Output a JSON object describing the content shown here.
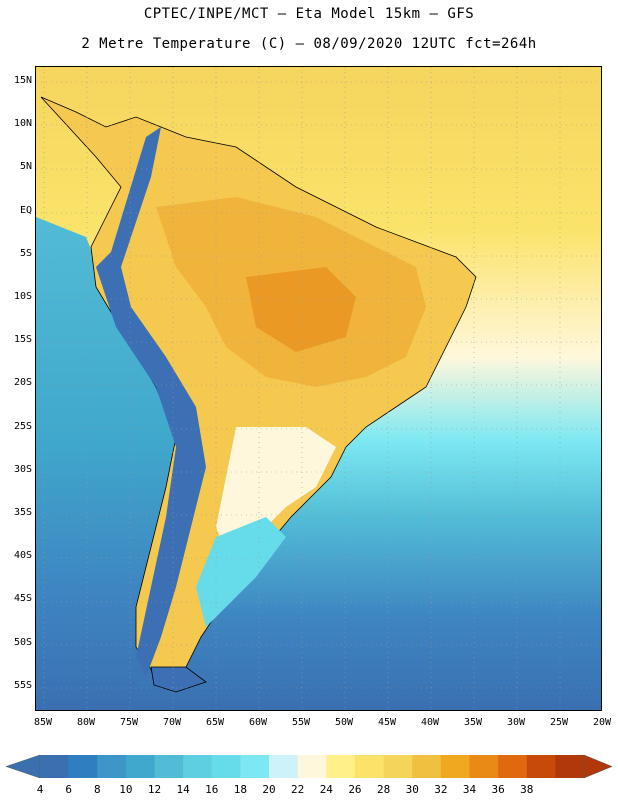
{
  "header": {
    "title_line1": "CPTEC/INPE/MCT –  Eta Model 15km – GFS",
    "title_line2": "2 Metre Temperature (C) – 08/09/2020 12UTC fct=264h"
  },
  "axes": {
    "lat_labels": [
      "15N",
      "10N",
      "5N",
      "EQ",
      "5S",
      "10S",
      "15S",
      "20S",
      "25S",
      "30S",
      "35S",
      "40S",
      "45S",
      "50S",
      "55S"
    ],
    "lon_labels": [
      "85W",
      "80W",
      "75W",
      "70W",
      "65W",
      "60W",
      "55W",
      "50W",
      "45W",
      "40W",
      "35W",
      "30W",
      "25W",
      "20W"
    ]
  },
  "colorbar": {
    "levels": [
      "4",
      "6",
      "8",
      "10",
      "12",
      "14",
      "16",
      "18",
      "20",
      "22",
      "24",
      "26",
      "28",
      "30",
      "32",
      "34",
      "36",
      "38"
    ],
    "colors": [
      "#3a6fb0",
      "#2f7fc0",
      "#3e96c8",
      "#40a8cc",
      "#52bcd6",
      "#5ecfe0",
      "#66dcea",
      "#7de8f2",
      "#cdf2f9",
      "#fff7dc",
      "#fff08a",
      "#fbe36a",
      "#f5d45a",
      "#f0c040",
      "#f0a820",
      "#ea8a16",
      "#e0680e",
      "#c84a0a",
      "#b0380a"
    ],
    "left_arrow_color": "#3a6fb0",
    "right_arrow_color": "#b0380a"
  },
  "map": {
    "ocean_pacific_color": "#3d9ecc",
    "ocean_south_color": "#3a73b4",
    "ocean_atlantic_north_color": "#f5d55e",
    "land_tropical_color": "#f0b43c",
    "land_south_color": "#fbe37a",
    "andes_color": "#3c6fb4",
    "coast_color": "#000000",
    "grid_color": "#999999"
  }
}
